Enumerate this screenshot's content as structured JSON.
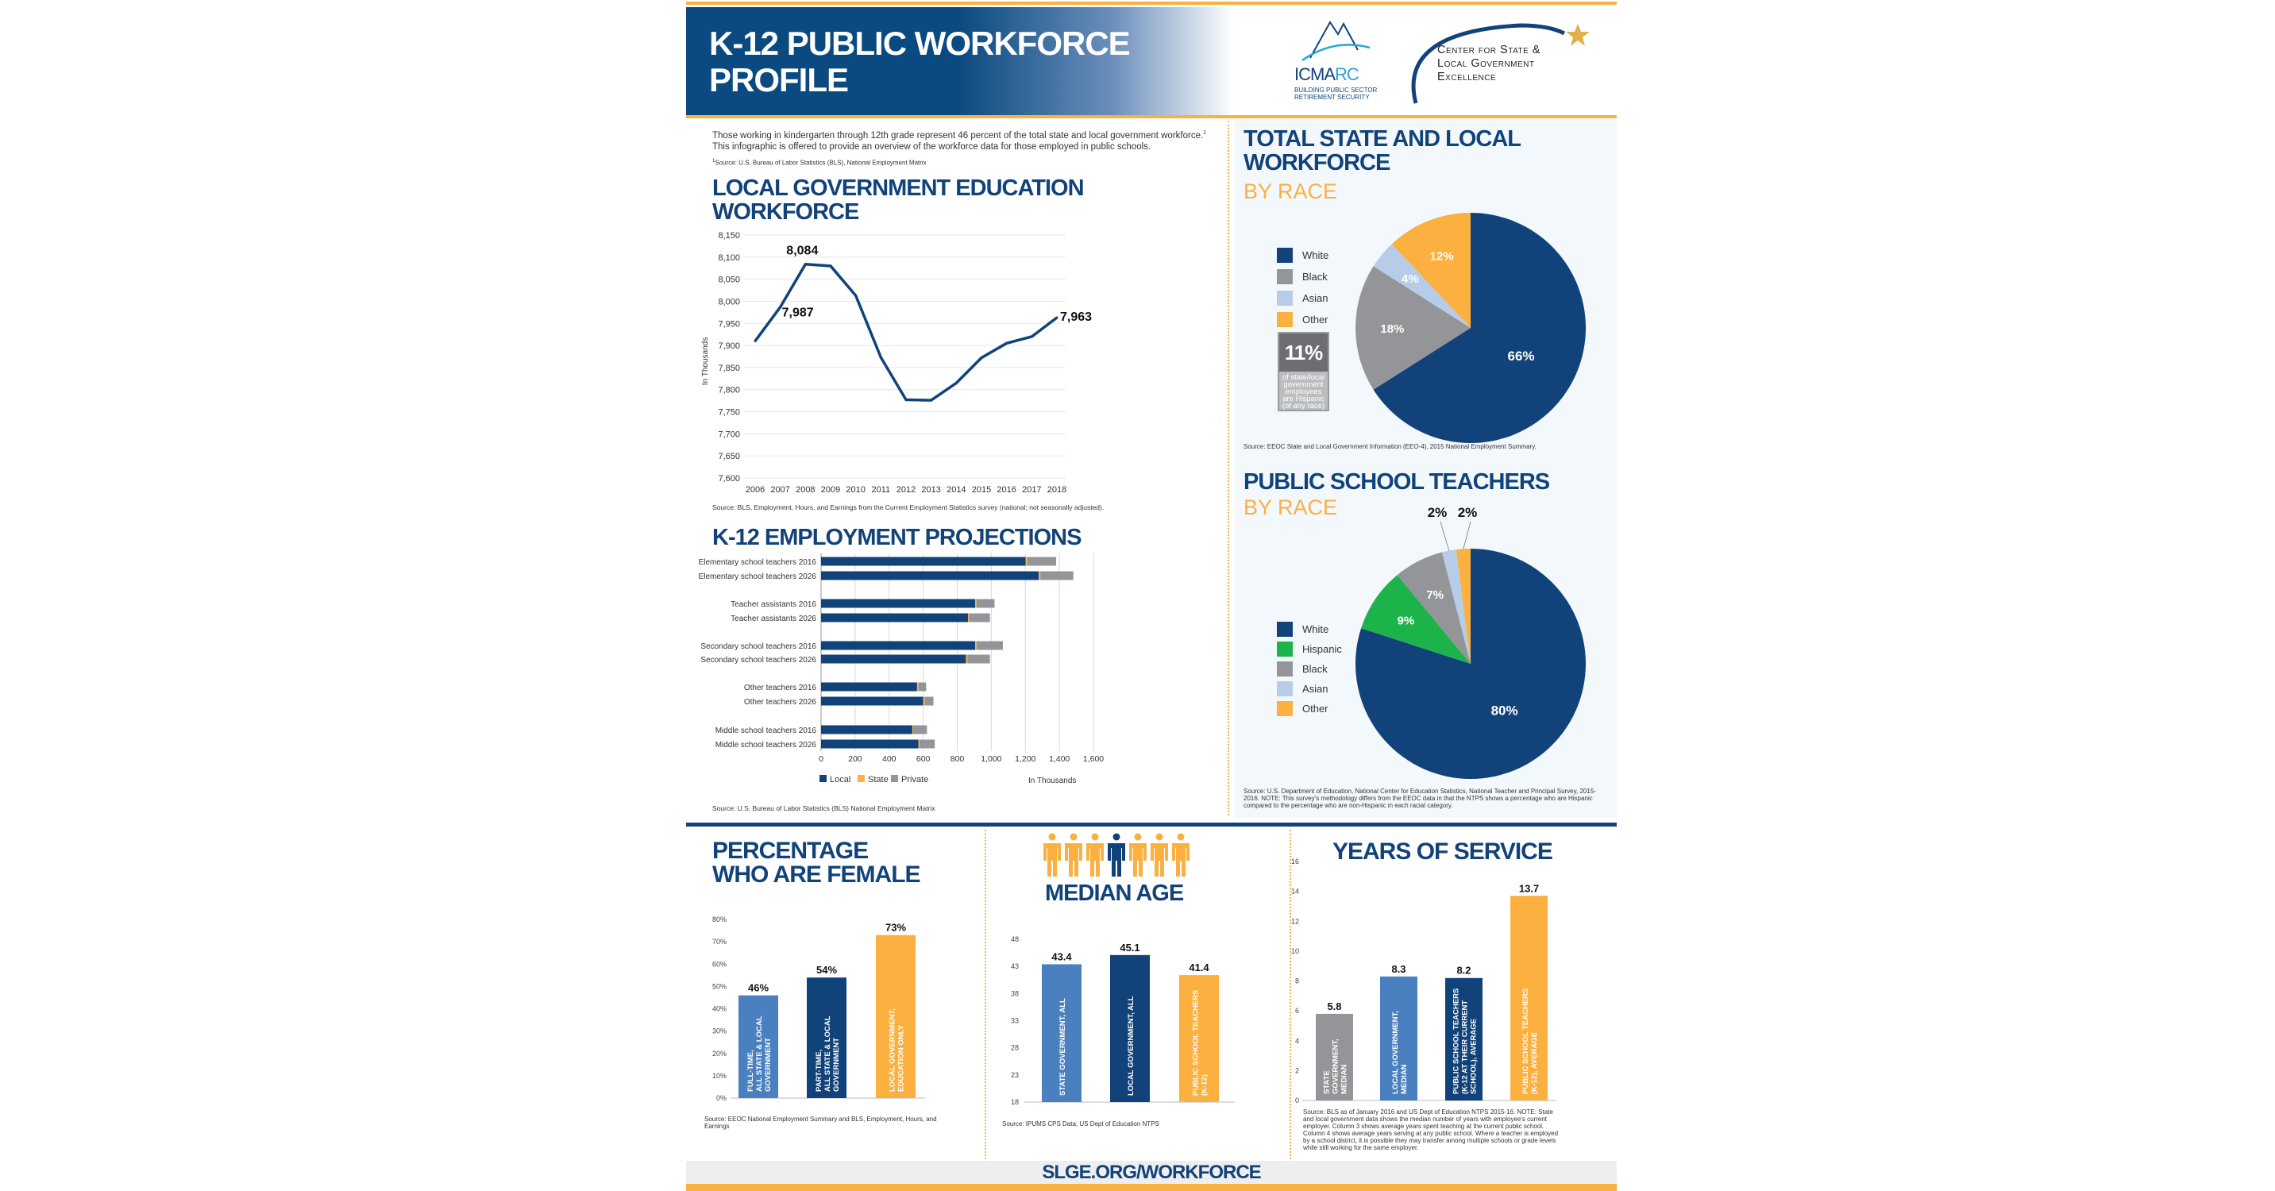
{
  "header": {
    "title_line1": "K-12 PUBLIC WORKFORCE",
    "title_line2": "PROFILE",
    "logo_icma": {
      "name": "ICMA-RC",
      "text_a": "ICMA",
      "text_b": "RC",
      "tagline1": "BUILDING PUBLIC SECTOR",
      "tagline2": "RETIREMENT SECURITY"
    },
    "logo_slge": {
      "line1": "Center for State &",
      "line2": "Local Government",
      "line3": "Excellence"
    }
  },
  "intro": {
    "line1": "Those working in kindergarten through 12th grade represent 46 percent of the total state and local government workforce.",
    "footnote_mark": "1",
    "line2": "This infographic is offered to provide an overview of the workforce data for those employed in public schools.",
    "footnote": "Source: U.S. Bureau of Labor Statistics (BLS), National Employment Matrix"
  },
  "colors": {
    "navy": "#11437a",
    "orange": "#fbb040",
    "gray": "#939598",
    "light_blue": "#b6cce8",
    "mid_blue": "#4a80c0",
    "green": "#1db34b"
  },
  "chart_data": [
    {
      "id": "local-ed",
      "type": "line",
      "title": "LOCAL GOVERNMENT EDUCATION WORKFORCE",
      "ylabel": "In Thousands",
      "ylim": [
        7600,
        8150
      ],
      "yticks": [
        7600,
        7650,
        7700,
        7750,
        7800,
        7850,
        7900,
        7950,
        8000,
        8050,
        8100,
        8150
      ],
      "grid": true,
      "x": [
        2006,
        2007,
        2008,
        2009,
        2010,
        2011,
        2012,
        2013,
        2014,
        2015,
        2016,
        2017,
        2018
      ],
      "values": [
        7910,
        7987,
        8084,
        8080,
        8013,
        7873,
        7777,
        7776,
        7815,
        7872,
        7905,
        7920,
        7963
      ],
      "annotations": [
        {
          "x": 2007,
          "label": "7,987"
        },
        {
          "x": 2008,
          "label": "8,084"
        },
        {
          "x": 2018,
          "label": "7,963"
        }
      ],
      "source": "Source: BLS, Employment, Hours, and Earnings from the Current Employment Statistics survey (national; not seasonally adjusted)."
    },
    {
      "id": "projections",
      "type": "bar",
      "orientation": "horizontal",
      "stacked": true,
      "title": "K-12 EMPLOYMENT PROJECTIONS",
      "xlabel": "In Thousands",
      "xlim": [
        0,
        1600
      ],
      "xticks": [
        0,
        200,
        400,
        600,
        800,
        1000,
        1200,
        1400,
        1600
      ],
      "xtick_labels": [
        "0",
        "200",
        "400",
        "600",
        "800",
        "1,000",
        "1,200",
        "1,400",
        "1,600"
      ],
      "legend": "bottom",
      "categories": [
        "Elementary school teachers 2016",
        "Elementary school teachers 2026",
        "Teacher assistants 2016",
        "Teacher assistants 2026",
        "Secondary school teachers 2016",
        "Secondary school teachers 2026",
        "Other teachers 2016",
        "Other teachers 2026",
        "Middle school teachers 2016",
        "Middle school teachers 2026"
      ],
      "series": [
        {
          "name": "Local",
          "color": "#11437a",
          "values": [
            1202,
            1279,
            905,
            864,
            905,
            851,
            564,
            600,
            536,
            572
          ]
        },
        {
          "name": "State",
          "color": "#fbb040",
          "values": [
            9,
            9,
            8,
            6,
            8,
            8,
            8,
            9,
            5,
            5
          ]
        },
        {
          "name": "Private",
          "color": "#939598",
          "values": [
            170,
            194,
            106,
            122,
            155,
            133,
            45,
            51,
            81,
            91
          ]
        }
      ],
      "source": "Source: U.S. Bureau of Labor Statistics (BLS) National Employment Matrix"
    },
    {
      "id": "total-race",
      "type": "pie",
      "title": "TOTAL STATE AND LOCAL WORKFORCE",
      "subtitle": "BY RACE",
      "legend": "left",
      "slices": [
        {
          "name": "White",
          "value": 66,
          "label": "66%",
          "color": "#11437a"
        },
        {
          "name": "Black",
          "value": 18,
          "label": "18%",
          "color": "#939598"
        },
        {
          "name": "Asian",
          "value": 4,
          "label": "4%",
          "color": "#b6cce8"
        },
        {
          "name": "Other",
          "value": 12,
          "label": "12%",
          "color": "#fbb040"
        }
      ],
      "callout": {
        "value": "11%",
        "text": "of state/local government employees are Hispanic (of any race)"
      },
      "source": "Source: EEOC State and Local Government Information (EEO-4), 2015 National Employment Summary."
    },
    {
      "id": "teacher-race",
      "type": "pie",
      "title": "PUBLIC SCHOOL TEACHERS",
      "subtitle": "BY RACE",
      "legend": "left",
      "slices": [
        {
          "name": "White",
          "value": 80,
          "label": "80%",
          "color": "#11437a"
        },
        {
          "name": "Hispanic",
          "value": 9,
          "label": "9%",
          "color": "#1db34b"
        },
        {
          "name": "Black",
          "value": 7,
          "label": "7%",
          "color": "#939598"
        },
        {
          "name": "Asian",
          "value": 2,
          "label": "2%",
          "color": "#b6cce8"
        },
        {
          "name": "Other",
          "value": 2,
          "label": "2%",
          "color": "#fbb040"
        }
      ],
      "source": "Source: U.S. Department of Education, National Center for Education Statistics, National Teacher and Principal Survey, 2015-2016. NOTE: This survey's methodology differs from the EEOC data in that the NTPS shows a percentage who are Hispanic compared to the percentage who are non-Hispanic in each racial category."
    },
    {
      "id": "female",
      "type": "bar",
      "title_line1": "PERCENTAGE",
      "title_line2": "WHO ARE FEMALE",
      "ylim": [
        0,
        80
      ],
      "yticks": [
        0,
        10,
        20,
        30,
        40,
        50,
        60,
        70,
        80
      ],
      "ytick_suffix": "%",
      "bars": [
        {
          "lines": [
            "FULL-TIME,",
            "ALL STATE & LOCAL",
            "GOVERNMENT"
          ],
          "value": 46,
          "label": "46%",
          "color": "#4a80c0"
        },
        {
          "lines": [
            "PART-TIME,",
            "ALL STATE & LOCAL",
            "GOVERNMENT"
          ],
          "value": 54,
          "label": "54%",
          "color": "#11437a"
        },
        {
          "lines": [
            "LOCAL GOVERNMENT,",
            "EDUCATION ONLY"
          ],
          "value": 73,
          "label": "73%",
          "color": "#fbb040"
        }
      ],
      "source": "Source: EEOC National Employment Summary and BLS, Employment, Hours, and Earnings"
    },
    {
      "id": "median-age",
      "type": "bar",
      "title": "MEDIAN AGE",
      "ylim": [
        18,
        48
      ],
      "yticks": [
        18,
        23,
        28,
        33,
        38,
        43,
        48
      ],
      "ytick_suffix": "",
      "bars": [
        {
          "lines": [
            "STATE GOVERNMENT, ALL"
          ],
          "value": 43.4,
          "label": "43.4",
          "color": "#4a80c0"
        },
        {
          "lines": [
            "LOCAL GOVERNMENT, ALL"
          ],
          "value": 45.1,
          "label": "45.1",
          "color": "#11437a"
        },
        {
          "lines": [
            "PUBLIC SCHOOL TEACHERS",
            "(K-12)"
          ],
          "value": 41.4,
          "label": "41.4",
          "color": "#fbb040"
        }
      ],
      "source": "Source: IPUMS CPS Data; US Dept of Education NTPS"
    },
    {
      "id": "years",
      "type": "bar",
      "title": "YEARS OF SERVICE",
      "ylim": [
        0,
        16
      ],
      "yticks": [
        0,
        2,
        4,
        6,
        8,
        10,
        12,
        14,
        16
      ],
      "ytick_suffix": "",
      "bars": [
        {
          "lines": [
            "STATE",
            "GOVERNMENT,",
            "MEDIAN"
          ],
          "value": 5.8,
          "label": "5.8",
          "color": "#939598"
        },
        {
          "lines": [
            "LOCAL GOVERNMENT,",
            "MEDIAN"
          ],
          "value": 8.3,
          "label": "8.3",
          "color": "#4a80c0"
        },
        {
          "lines": [
            "PUBLIC SCHOOL TEACHERS",
            "(K-12 AT THEIR CURRENT",
            "SCHOOL), AVERAGE"
          ],
          "value": 8.2,
          "label": "8.2",
          "color": "#11437a"
        },
        {
          "lines": [
            "PUBLIC SCHOOL TEACHERS",
            "(K-12), AVERAGE"
          ],
          "value": 13.7,
          "label": "13.7",
          "color": "#fbb040"
        }
      ],
      "source": "Source: BLS as of January 2016 and US Dept of Education NTPS 2015-16. NOTE: State and local government data shows the median number of years with employee's current employer. Column 3 shows average years spent teaching at the current public school. Column 4 shows average years serving at any public school. Where a teacher is employed by a school district, it is possible they may transfer among multiple schools or grade levels while still working for the same employer."
    }
  ],
  "footer": {
    "url": "SLGE.ORG/WORKFORCE"
  }
}
